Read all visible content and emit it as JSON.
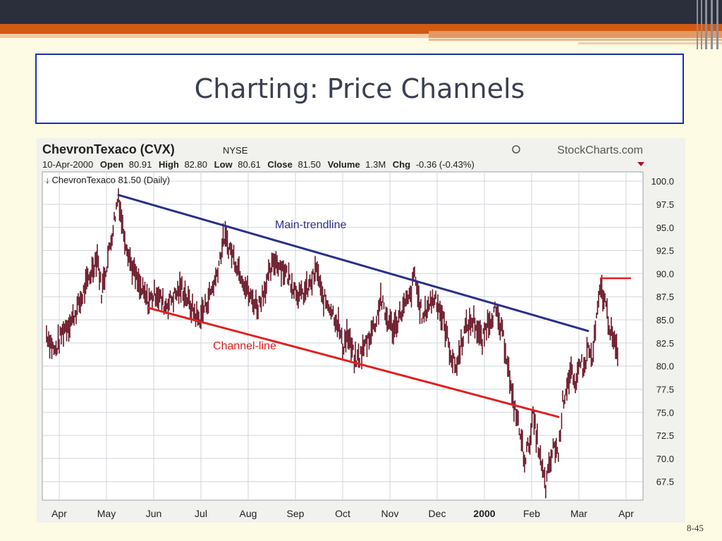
{
  "slide": {
    "title": "Charting: Price Channels",
    "page_number": "8-45"
  },
  "chart_data": {
    "type": "bar",
    "header": {
      "company": "ChevronTexaco (CVX)",
      "exchange": "NYSE",
      "brand": "StockCharts.com",
      "date": "10-Apr-2000",
      "open_label": "Open",
      "open": "80.91",
      "high_label": "High",
      "high": "82.80",
      "low_label": "Low",
      "low": "80.61",
      "close_label": "Close",
      "close": "81.50",
      "volume_label": "Volume",
      "volume": "1.3M",
      "chg_label": "Chg",
      "chg": "-0.36 (-0.43%)",
      "series_label": "ChevronTexaco 81.50 (Daily)"
    },
    "yticks": [
      "100.0",
      "97.5",
      "95.0",
      "92.5",
      "90.0",
      "87.5",
      "85.0",
      "82.5",
      "80.0",
      "77.5",
      "75.0",
      "72.5",
      "70.0",
      "67.5"
    ],
    "ylim": [
      65.5,
      101
    ],
    "months": [
      {
        "label": "Apr",
        "bold": false
      },
      {
        "label": "May",
        "bold": false
      },
      {
        "label": "Jun",
        "bold": false
      },
      {
        "label": "Jul",
        "bold": false
      },
      {
        "label": "Aug",
        "bold": false
      },
      {
        "label": "Sep",
        "bold": false
      },
      {
        "label": "Oct",
        "bold": false
      },
      {
        "label": "Nov",
        "bold": false
      },
      {
        "label": "Dec",
        "bold": false
      },
      {
        "label": "2000",
        "bold": true
      },
      {
        "label": "Feb",
        "bold": false
      },
      {
        "label": "Mar",
        "bold": false
      },
      {
        "label": "Apr",
        "bold": false
      }
    ],
    "price_path": [
      [
        0,
        83.5
      ],
      [
        2,
        81.5
      ],
      [
        4,
        84.0
      ],
      [
        6,
        85.0
      ],
      [
        8,
        87.0
      ],
      [
        10,
        89.5
      ],
      [
        12,
        92.0
      ],
      [
        13,
        88.0
      ],
      [
        15,
        93.0
      ],
      [
        17,
        98.5
      ],
      [
        18,
        95.0
      ],
      [
        20,
        91.0
      ],
      [
        22,
        88.5
      ],
      [
        24,
        87.0
      ],
      [
        26,
        88.0
      ],
      [
        28,
        86.5
      ],
      [
        30,
        87.5
      ],
      [
        32,
        88.5
      ],
      [
        34,
        86.5
      ],
      [
        36,
        85.0
      ],
      [
        38,
        87.0
      ],
      [
        40,
        89.5
      ],
      [
        42,
        94.0
      ],
      [
        44,
        92.0
      ],
      [
        46,
        90.0
      ],
      [
        48,
        87.5
      ],
      [
        50,
        86.5
      ],
      [
        52,
        89.0
      ],
      [
        54,
        91.5
      ],
      [
        56,
        90.5
      ],
      [
        58,
        89.0
      ],
      [
        60,
        87.5
      ],
      [
        62,
        88.5
      ],
      [
        64,
        90.5
      ],
      [
        65,
        87.5
      ],
      [
        67,
        86.5
      ],
      [
        69,
        84.5
      ],
      [
        70,
        82.0
      ],
      [
        71,
        83.5
      ],
      [
        73,
        80.5
      ],
      [
        74,
        81.0
      ],
      [
        76,
        83.0
      ],
      [
        78,
        85.0
      ],
      [
        79,
        87.5
      ],
      [
        80,
        85.5
      ],
      [
        82,
        84.0
      ],
      [
        84,
        86.0
      ],
      [
        86,
        87.5
      ],
      [
        87,
        90.0
      ],
      [
        88,
        87.0
      ],
      [
        89,
        85.0
      ],
      [
        90,
        86.5
      ],
      [
        92,
        87.5
      ],
      [
        94,
        84.5
      ],
      [
        95,
        82.5
      ],
      [
        96,
        80.5
      ],
      [
        97,
        80.0
      ],
      [
        98,
        82.5
      ],
      [
        99,
        84.0
      ],
      [
        101,
        85.0
      ],
      [
        103,
        82.5
      ],
      [
        104,
        84.5
      ],
      [
        106,
        86.0
      ],
      [
        108,
        83.0
      ],
      [
        109,
        80.5
      ],
      [
        110,
        76.5
      ],
      [
        111,
        75.0
      ],
      [
        112,
        72.5
      ],
      [
        113,
        70.0
      ],
      [
        114,
        71.5
      ],
      [
        115,
        74.5
      ],
      [
        116,
        72.0
      ],
      [
        117,
        69.0
      ],
      [
        118,
        67.0
      ],
      [
        119,
        69.5
      ],
      [
        120,
        71.5
      ],
      [
        121,
        70.5
      ],
      [
        122,
        76.0
      ],
      [
        123,
        78.0
      ],
      [
        124,
        79.5
      ],
      [
        125,
        77.0
      ],
      [
        126,
        81.0
      ],
      [
        127,
        79.5
      ],
      [
        128,
        82.0
      ],
      [
        129,
        80.5
      ],
      [
        130,
        85.0
      ],
      [
        131,
        88.5
      ],
      [
        132,
        87.0
      ],
      [
        133,
        84.5
      ],
      [
        134,
        82.5
      ],
      [
        135,
        81.5
      ]
    ],
    "main_trendline": {
      "label": "Main-trendline",
      "from": [
        17,
        98.5
      ],
      "to": [
        128,
        83.8
      ],
      "color": "#2a2f8a"
    },
    "channel_line": {
      "label": "Channel-line",
      "from": [
        24,
        86.3
      ],
      "to": [
        121,
        74.5
      ],
      "color": "#e02020"
    },
    "resistance_mark": {
      "from": [
        131,
        89.5
      ],
      "to": [
        138,
        89.5
      ],
      "color": "#e02020"
    },
    "colors": {
      "bars": "#6a1a2a",
      "grid": "#cfd6dc",
      "panel": "#ffffff"
    }
  }
}
